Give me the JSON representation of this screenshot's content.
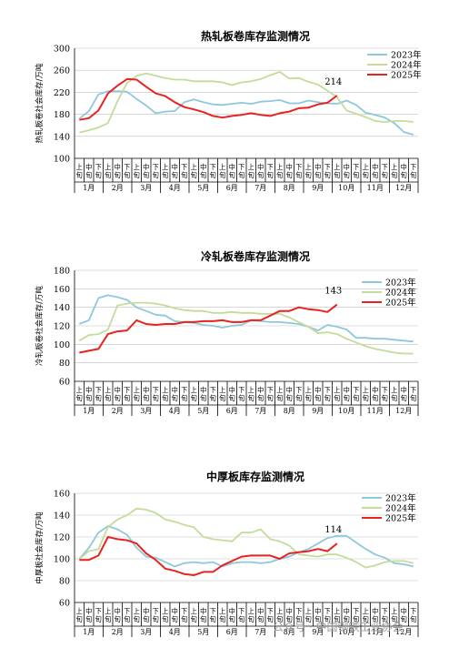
{
  "watermark": "公众号 · 中国钢铁工业协会",
  "period_labels": [
    "上旬",
    "中旬",
    "下旬"
  ],
  "chart_data": [
    {
      "type": "line",
      "title": "热轧板卷库存监测情况",
      "ylabel": "热轧板卷社会库存/万吨",
      "ylim": [
        100,
        300
      ],
      "yticks": [
        100,
        140,
        180,
        220,
        260,
        300
      ],
      "months": [
        "1月",
        "2月",
        "3月",
        "4月",
        "5月",
        "6月",
        "7月",
        "8月",
        "9月",
        "10月",
        "11月",
        "12月"
      ],
      "annotation": {
        "text": "214",
        "series": "2025年"
      },
      "series": [
        {
          "name": "2023年",
          "color": "#8ec8dd",
          "values": [
            172,
            186,
            216,
            222,
            222,
            221,
            208,
            196,
            182,
            185,
            186,
            202,
            207,
            202,
            198,
            197,
            199,
            201,
            199,
            203,
            204,
            206,
            200,
            200,
            205,
            202,
            200,
            199,
            205,
            197,
            183,
            179,
            174,
            164,
            148,
            143
          ]
        },
        {
          "name": "2024年",
          "color": "#c4db9a",
          "values": [
            147,
            151,
            156,
            164,
            204,
            237,
            250,
            254,
            250,
            246,
            243,
            243,
            240,
            240,
            240,
            238,
            233,
            238,
            240,
            244,
            251,
            257,
            245,
            246,
            239,
            234,
            223,
            211,
            187,
            181,
            175,
            168,
            166,
            168,
            168,
            166
          ]
        },
        {
          "name": "2025年",
          "color": "#e8231f",
          "values": [
            170,
            173,
            187,
            218,
            232,
            244,
            243,
            230,
            218,
            213,
            202,
            193,
            189,
            184,
            177,
            174,
            177,
            179,
            182,
            179,
            177,
            182,
            185,
            191,
            192,
            198,
            201,
            214
          ]
        }
      ]
    },
    {
      "type": "line",
      "title": "冷轧板卷库存监测情况",
      "ylabel": "冷轧板卷社会库存/万吨",
      "ylim": [
        60,
        180
      ],
      "yticks": [
        60,
        80,
        100,
        120,
        140,
        160,
        180
      ],
      "months": [
        "1月",
        "2月",
        "3月",
        "4月",
        "5月",
        "6月",
        "7月",
        "8月",
        "9月",
        "10月",
        "11月",
        "12月"
      ],
      "annotation": {
        "text": "143",
        "series": "2025年"
      },
      "series": [
        {
          "name": "2023年",
          "color": "#8ec8dd",
          "values": [
            122,
            126,
            150,
            153,
            151,
            148,
            140,
            136,
            132,
            131,
            125,
            124,
            123,
            121,
            120,
            118,
            120,
            121,
            126,
            125,
            124,
            124,
            123,
            122,
            119,
            115,
            121,
            119,
            116,
            107,
            107,
            106,
            106,
            105,
            104,
            103
          ]
        },
        {
          "name": "2024年",
          "color": "#c4db9a",
          "values": [
            104,
            110,
            111,
            116,
            142,
            144,
            145,
            145,
            144,
            142,
            139,
            137,
            136,
            136,
            134,
            134,
            135,
            134,
            134,
            133,
            133,
            133,
            129,
            124,
            119,
            112,
            113,
            111,
            106,
            102,
            98,
            95,
            93,
            91,
            90,
            90
          ]
        },
        {
          "name": "2025年",
          "color": "#e8231f",
          "values": [
            91,
            93,
            95,
            111,
            114,
            115,
            126,
            122,
            121,
            122,
            122,
            124,
            124,
            125,
            125,
            126,
            124,
            124,
            126,
            126,
            131,
            136,
            136,
            140,
            138,
            137,
            135,
            143
          ]
        }
      ]
    },
    {
      "type": "line",
      "title": "中厚板库存监测情况",
      "ylabel": "中厚板社会库存/万吨",
      "ylim": [
        60,
        160
      ],
      "yticks": [
        60,
        80,
        100,
        120,
        140,
        160
      ],
      "months": [
        "1月",
        "2月",
        "3月",
        "4月",
        "5月",
        "6月",
        "7月",
        "8月",
        "9月",
        "10月",
        "11月",
        "12月"
      ],
      "annotation": {
        "text": "114",
        "series": "2025年"
      },
      "series": [
        {
          "name": "2023年",
          "color": "#8ec8dd",
          "values": [
            100,
            110,
            124,
            130,
            127,
            122,
            110,
            102,
            101,
            97,
            93,
            96,
            97,
            96,
            97,
            93,
            96,
            97,
            97,
            96,
            97,
            100,
            102,
            106,
            109,
            114,
            119,
            121,
            121,
            115,
            109,
            104,
            101,
            96,
            95,
            93
          ]
        },
        {
          "name": "2024年",
          "color": "#c4db9a",
          "values": [
            100,
            107,
            109,
            129,
            136,
            140,
            146,
            145,
            142,
            136,
            134,
            131,
            129,
            120,
            118,
            117,
            116,
            124,
            124,
            127,
            118,
            116,
            112,
            104,
            103,
            102,
            104,
            104,
            101,
            97,
            92,
            94,
            97,
            98,
            98,
            96
          ]
        },
        {
          "name": "2025年",
          "color": "#e8231f",
          "values": [
            99,
            99,
            103,
            120,
            118,
            117,
            114,
            105,
            99,
            91,
            89,
            86,
            85,
            88,
            88,
            94,
            98,
            102,
            103,
            103,
            103,
            100,
            105,
            106,
            107,
            109,
            107,
            114
          ]
        }
      ]
    }
  ]
}
